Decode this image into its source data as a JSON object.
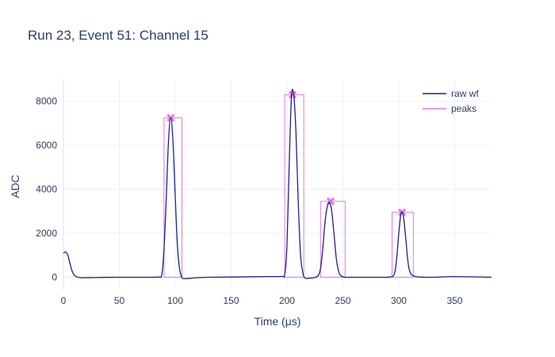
{
  "chart_data": {
    "type": "line",
    "title": "Run 23, Event 51: Channel 15",
    "xlabel": "Time (μs)",
    "ylabel": "ADC",
    "xlim": [
      0,
      383
    ],
    "ylim": [
      -560,
      9000
    ],
    "xticks": [
      0,
      50,
      100,
      150,
      200,
      250,
      300,
      350
    ],
    "yticks": [
      0,
      2000,
      4000,
      6000,
      8000
    ],
    "grid": true,
    "legend": "top-right",
    "series": [
      {
        "name": "raw wf",
        "color": "#1f1f8f",
        "x": [
          0,
          2,
          4,
          6,
          8,
          10,
          12,
          15,
          20,
          30,
          50,
          70,
          85,
          88,
          90,
          92,
          94,
          96,
          98,
          100,
          102,
          104,
          106,
          108,
          110,
          115,
          120,
          130,
          150,
          180,
          195,
          198,
          200,
          202,
          204,
          206,
          208,
          210,
          212,
          214,
          216,
          220,
          225,
          228,
          230,
          232,
          234,
          236,
          238,
          240,
          242,
          244,
          246,
          248,
          252,
          260,
          280,
          292,
          296,
          298,
          300,
          302,
          304,
          306,
          308,
          310,
          315,
          330,
          350,
          383
        ],
        "y": [
          1100,
          1150,
          1000,
          600,
          250,
          80,
          20,
          -20,
          -20,
          -10,
          0,
          0,
          10,
          120,
          1300,
          3600,
          6200,
          7250,
          6200,
          3700,
          1400,
          350,
          -10,
          -60,
          -60,
          -40,
          -20,
          0,
          10,
          30,
          40,
          150,
          1500,
          5200,
          8200,
          8300,
          6600,
          3500,
          1100,
          250,
          -30,
          -40,
          -10,
          80,
          400,
          1300,
          2500,
          3200,
          3400,
          3000,
          2000,
          900,
          300,
          80,
          0,
          0,
          0,
          10,
          150,
          800,
          2000,
          2900,
          2800,
          1900,
          800,
          250,
          30,
          0,
          30,
          0
        ]
      },
      {
        "name": "peaks",
        "color": "#e377e6",
        "marker": "x",
        "peaks": [
          {
            "t": 96,
            "adc": 7250,
            "start": 90,
            "end": 106
          },
          {
            "t": 205,
            "adc": 8300,
            "start": 198,
            "end": 215
          },
          {
            "t": 239,
            "adc": 3450,
            "start": 230,
            "end": 252
          },
          {
            "t": 303,
            "adc": 2950,
            "start": 294,
            "end": 313
          }
        ]
      }
    ]
  }
}
